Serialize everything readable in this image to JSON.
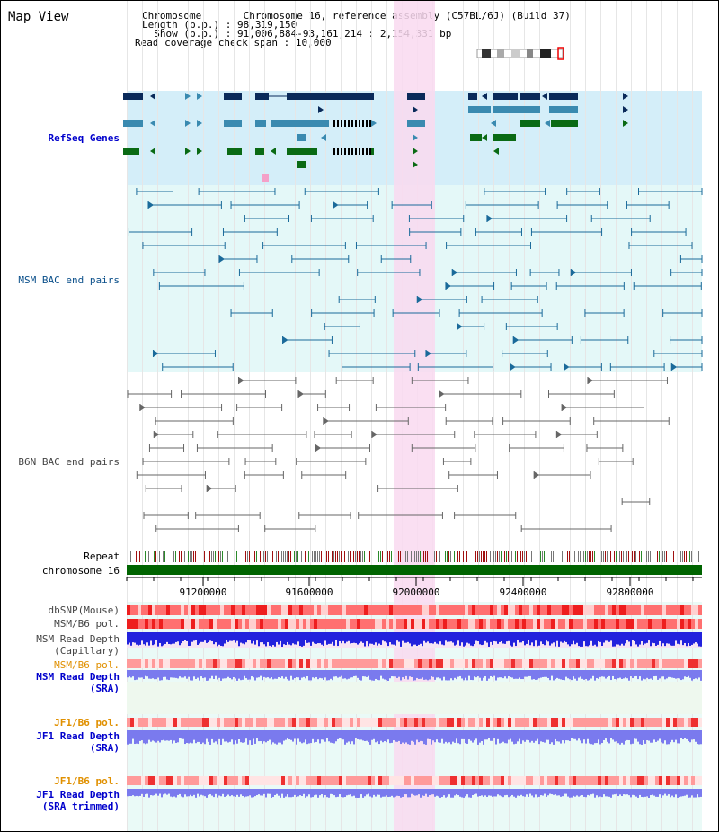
{
  "header": {
    "view_title": "Map View",
    "rows": [
      {
        "key": "Chromosome     ",
        "value": "Chromosome 16, reference assembly (C57BL/6J) (Build 37)"
      },
      {
        "key": "Length (b.p.) ",
        "value": "98,319,150"
      },
      {
        "key": "  Show (b.p.) ",
        "value": "91,006,884-93,161,214 : 2,154,331 bp"
      },
      {
        "key": "Read coverage check span ",
        "value": "10,000"
      }
    ]
  },
  "tracks": {
    "refseq": "RefSeq Genes",
    "msm_bac": "MSM BAC end pairs",
    "b6n_bac": "B6N BAC end pairs",
    "repeat": "Repeat",
    "chromosome": "chromosome 16",
    "dbsnp": "dbSNP(Mouse)",
    "msm_b6_pol": "MSM/B6 pol.",
    "msm_depth_cap_1": "MSM Read Depth",
    "msm_depth_cap_2": "(Capillary)",
    "msm_b6_pol_2": "MSM/B6 pol.",
    "msm_depth_sra_1": "MSM Read Depth",
    "msm_depth_sra_2": "(SRA)",
    "jf1_b6_pol": "JF1/B6 pol.",
    "jf1_depth_sra_1": "JF1 Read Depth",
    "jf1_depth_sra_2": "(SRA)",
    "jf1_b6_pol_2": "JF1/B6 pol.",
    "jf1_depth_trim_1": "JF1 Read Depth",
    "jf1_depth_trim_2": "(SRA trimmed)"
  },
  "axis": {
    "ticks": [
      "91200000",
      "91600000",
      "92000000",
      "92400000",
      "92800000"
    ]
  },
  "colors": {
    "refseq_bg": "#d4eef9",
    "bac_bg": "#e4f8f8",
    "highlight": "#f9d9f0",
    "gene_navy": "#0a2a5a",
    "gene_blue": "#3a8ab0",
    "gene_green": "#0a6a14",
    "chromosome": "#006400",
    "depth_blue": "#2222dd",
    "depth_light": "#7a7aee"
  }
}
